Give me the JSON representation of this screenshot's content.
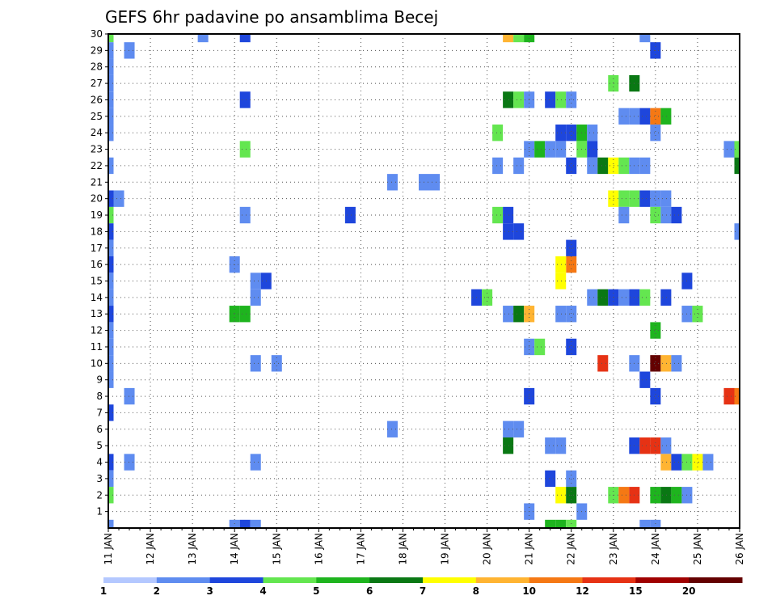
{
  "chart_data": {
    "type": "heatmap",
    "title": "GEFS 6hr padavine po ansamblima Becej",
    "xlabel": "",
    "ylabel": "",
    "x_tick_labels": [
      "11 JAN",
      "12 JAN",
      "13 JAN",
      "14 JAN",
      "15 JAN",
      "16 JAN",
      "17 JAN",
      "18 JAN",
      "19 JAN",
      "20 JAN",
      "21 JAN",
      "22 JAN",
      "23 JAN",
      "24 JAN",
      "25 JAN",
      "26 JAN"
    ],
    "y_tick_labels": [
      "1",
      "2",
      "3",
      "4",
      "5",
      "6",
      "7",
      "8",
      "9",
      "10",
      "11",
      "12",
      "13",
      "14",
      "15",
      "16",
      "17",
      "18",
      "19",
      "20",
      "21",
      "22",
      "23",
      "24",
      "25",
      "26",
      "27",
      "28",
      "29",
      "30"
    ],
    "time_steps": 61,
    "time_step_hours": 6,
    "members": 31,
    "grid": true,
    "legend": {
      "placement": "bottom",
      "labels": [
        "1",
        "2",
        "3",
        "4",
        "5",
        "6",
        "7",
        "8",
        "10",
        "12",
        "15",
        "20"
      ],
      "colors": [
        "#b4c8ff",
        "#5f8cf0",
        "#1e46dc",
        "#64e650",
        "#1eb41e",
        "#0a7814",
        "#ffff00",
        "#ffb432",
        "#f57814",
        "#e63214",
        "#a00000",
        "#640000"
      ]
    },
    "cells": [
      [
        0,
        30,
        3
      ],
      [
        0,
        19,
        3
      ],
      [
        0,
        18,
        2
      ],
      [
        0,
        17,
        1
      ],
      [
        0,
        16,
        2
      ],
      [
        0,
        15,
        1
      ],
      [
        0,
        14,
        1
      ],
      [
        0,
        13,
        2
      ],
      [
        0,
        12,
        1
      ],
      [
        0,
        11,
        1
      ],
      [
        0,
        10,
        1
      ],
      [
        0,
        9,
        1
      ],
      [
        0,
        7,
        2
      ],
      [
        0,
        4,
        2
      ],
      [
        0,
        3,
        1
      ],
      [
        0,
        2,
        3
      ],
      [
        0,
        0,
        1
      ],
      [
        0,
        29,
        1
      ],
      [
        0,
        28,
        1
      ],
      [
        0,
        27,
        1
      ],
      [
        0,
        26,
        1
      ],
      [
        0,
        25,
        1
      ],
      [
        0,
        24,
        1
      ],
      [
        0,
        22,
        1
      ],
      [
        0,
        20,
        2
      ],
      [
        1,
        20,
        1
      ],
      [
        2,
        29,
        1
      ],
      [
        2,
        8,
        1
      ],
      [
        2,
        4,
        1
      ],
      [
        9,
        30,
        1
      ],
      [
        13,
        30,
        2
      ],
      [
        12,
        0,
        1
      ],
      [
        13,
        0,
        2
      ],
      [
        14,
        0,
        1
      ],
      [
        13,
        26,
        2
      ],
      [
        13,
        23,
        3
      ],
      [
        13,
        19,
        1
      ],
      [
        12,
        16,
        1
      ],
      [
        14,
        15,
        1
      ],
      [
        15,
        15,
        2
      ],
      [
        14,
        14,
        1
      ],
      [
        12,
        13,
        4
      ],
      [
        13,
        13,
        4
      ],
      [
        14,
        10,
        1
      ],
      [
        16,
        10,
        1
      ],
      [
        14,
        4,
        1
      ],
      [
        23,
        19,
        2
      ],
      [
        27,
        21,
        1
      ],
      [
        27,
        6,
        1
      ],
      [
        30,
        21,
        1
      ],
      [
        31,
        21,
        1
      ],
      [
        35,
        14,
        2
      ],
      [
        36,
        14,
        3
      ],
      [
        37,
        24,
        3
      ],
      [
        37,
        22,
        1
      ],
      [
        37,
        19,
        3
      ],
      [
        38,
        19,
        2
      ],
      [
        38,
        18,
        2
      ],
      [
        39,
        18,
        2
      ],
      [
        38,
        30,
        7
      ],
      [
        39,
        30,
        3
      ],
      [
        40,
        30,
        4
      ],
      [
        38,
        26,
        5
      ],
      [
        39,
        26,
        3
      ],
      [
        40,
        26,
        1
      ],
      [
        42,
        26,
        2
      ],
      [
        43,
        26,
        3
      ],
      [
        44,
        26,
        1
      ],
      [
        38,
        13,
        1
      ],
      [
        39,
        13,
        5
      ],
      [
        40,
        13,
        7
      ],
      [
        39,
        22,
        1
      ],
      [
        38,
        6,
        1
      ],
      [
        39,
        6,
        1
      ],
      [
        38,
        5,
        5
      ],
      [
        40,
        11,
        1
      ],
      [
        41,
        11,
        3
      ],
      [
        40,
        8,
        2
      ],
      [
        40,
        1,
        1
      ],
      [
        40,
        23,
        1
      ],
      [
        41,
        23,
        4
      ],
      [
        42,
        23,
        1
      ],
      [
        43,
        23,
        1
      ],
      [
        43,
        24,
        2
      ],
      [
        44,
        24,
        2
      ],
      [
        45,
        24,
        4
      ],
      [
        46,
        24,
        1
      ],
      [
        45,
        23,
        3
      ],
      [
        46,
        23,
        2
      ],
      [
        44,
        22,
        2
      ],
      [
        46,
        22,
        1
      ],
      [
        47,
        22,
        5
      ],
      [
        48,
        22,
        6
      ],
      [
        49,
        22,
        3
      ],
      [
        50,
        22,
        1
      ],
      [
        51,
        22,
        1
      ],
      [
        44,
        17,
        2
      ],
      [
        44,
        16,
        8
      ],
      [
        43,
        16,
        6
      ],
      [
        43,
        15,
        6
      ],
      [
        46,
        14,
        1
      ],
      [
        47,
        14,
        5
      ],
      [
        48,
        14,
        2
      ],
      [
        49,
        14,
        1
      ],
      [
        50,
        14,
        2
      ],
      [
        51,
        14,
        3
      ],
      [
        53,
        14,
        2
      ],
      [
        44,
        13,
        1
      ],
      [
        44,
        11,
        2
      ],
      [
        42,
        5,
        1
      ],
      [
        43,
        5,
        1
      ],
      [
        42,
        3,
        2
      ],
      [
        44,
        3,
        1
      ],
      [
        43,
        2,
        6
      ],
      [
        44,
        2,
        5
      ],
      [
        45,
        1,
        1
      ],
      [
        42,
        0,
        4
      ],
      [
        43,
        0,
        4
      ],
      [
        44,
        0,
        3
      ],
      [
        43,
        13,
        1
      ],
      [
        47,
        10,
        9
      ],
      [
        50,
        10,
        1
      ],
      [
        52,
        10,
        11
      ],
      [
        53,
        10,
        7
      ],
      [
        54,
        10,
        1
      ],
      [
        48,
        27,
        3
      ],
      [
        50,
        27,
        5
      ],
      [
        49,
        25,
        1
      ],
      [
        50,
        25,
        1
      ],
      [
        51,
        25,
        2
      ],
      [
        52,
        25,
        8
      ],
      [
        53,
        25,
        4
      ],
      [
        48,
        20,
        6
      ],
      [
        49,
        20,
        3
      ],
      [
        50,
        20,
        3
      ],
      [
        51,
        20,
        2
      ],
      [
        52,
        20,
        1
      ],
      [
        53,
        20,
        1
      ],
      [
        49,
        19,
        1
      ],
      [
        52,
        19,
        3
      ],
      [
        53,
        19,
        1
      ],
      [
        54,
        19,
        2
      ],
      [
        52,
        24,
        1
      ],
      [
        52,
        12,
        4
      ],
      [
        51,
        9,
        2
      ],
      [
        52,
        8,
        2
      ],
      [
        50,
        5,
        2
      ],
      [
        51,
        5,
        9
      ],
      [
        52,
        5,
        9
      ],
      [
        53,
        5,
        1
      ],
      [
        53,
        4,
        7
      ],
      [
        54,
        4,
        2
      ],
      [
        55,
        4,
        3
      ],
      [
        56,
        4,
        6
      ],
      [
        57,
        4,
        1
      ],
      [
        48,
        2,
        3
      ],
      [
        49,
        2,
        8
      ],
      [
        50,
        2,
        9
      ],
      [
        52,
        2,
        4
      ],
      [
        53,
        2,
        5
      ],
      [
        54,
        2,
        4
      ],
      [
        55,
        2,
        1
      ],
      [
        52,
        29,
        2
      ],
      [
        51,
        30,
        1
      ],
      [
        51,
        0,
        1
      ],
      [
        52,
        0,
        1
      ],
      [
        55,
        15,
        2
      ],
      [
        55,
        13,
        1
      ],
      [
        56,
        13,
        3
      ],
      [
        59,
        23,
        1
      ],
      [
        60,
        23,
        3
      ],
      [
        60,
        22,
        5
      ],
      [
        60,
        18,
        1
      ],
      [
        59,
        8,
        9
      ],
      [
        60,
        8,
        8
      ]
    ]
  }
}
